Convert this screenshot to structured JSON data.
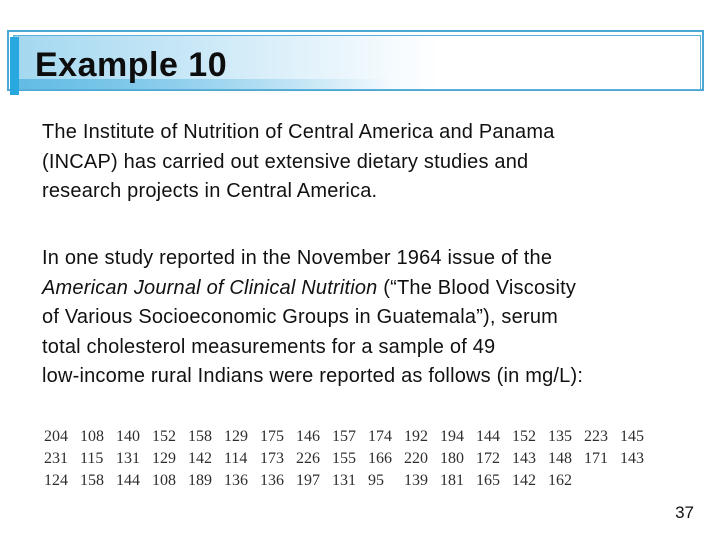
{
  "slide": {
    "title": "Example 10",
    "page_number": "37",
    "colors": {
      "accent_bar": "#29a8e0",
      "box_border": "#4da7d4",
      "inner_border": "#5cb0d8",
      "gradient_start": "#a3d8f0",
      "text": "#111111"
    },
    "body": {
      "paragraph1": "The Institute of Nutrition of Central America and Panama\n(INCAP) has carried out extensive dietary studies and\nresearch projects in Central America.",
      "paragraph2_pre": "In one study reported in the November 1964 issue of the\n",
      "paragraph2_italic": "American Journal of Clinical Nutrition",
      "paragraph2_post": " (“The Blood Viscosity\nof Various Socioeconomic Groups in Guatemala”), serum\ntotal cholesterol measurements for a sample of 49\nlow-income rural Indians were reported as follows (in mg/L):"
    },
    "table": {
      "description": "Serum total cholesterol measurements (mg/L), n=49",
      "rows": [
        [
          204,
          108,
          140,
          152,
          158,
          129,
          175,
          146,
          157,
          174,
          192,
          194,
          144,
          152,
          135,
          223,
          145
        ],
        [
          231,
          115,
          131,
          129,
          142,
          114,
          173,
          226,
          155,
          166,
          220,
          180,
          172,
          143,
          148,
          171,
          143
        ],
        [
          124,
          158,
          144,
          108,
          189,
          136,
          136,
          197,
          131,
          95,
          139,
          181,
          165,
          142,
          162
        ]
      ]
    }
  }
}
